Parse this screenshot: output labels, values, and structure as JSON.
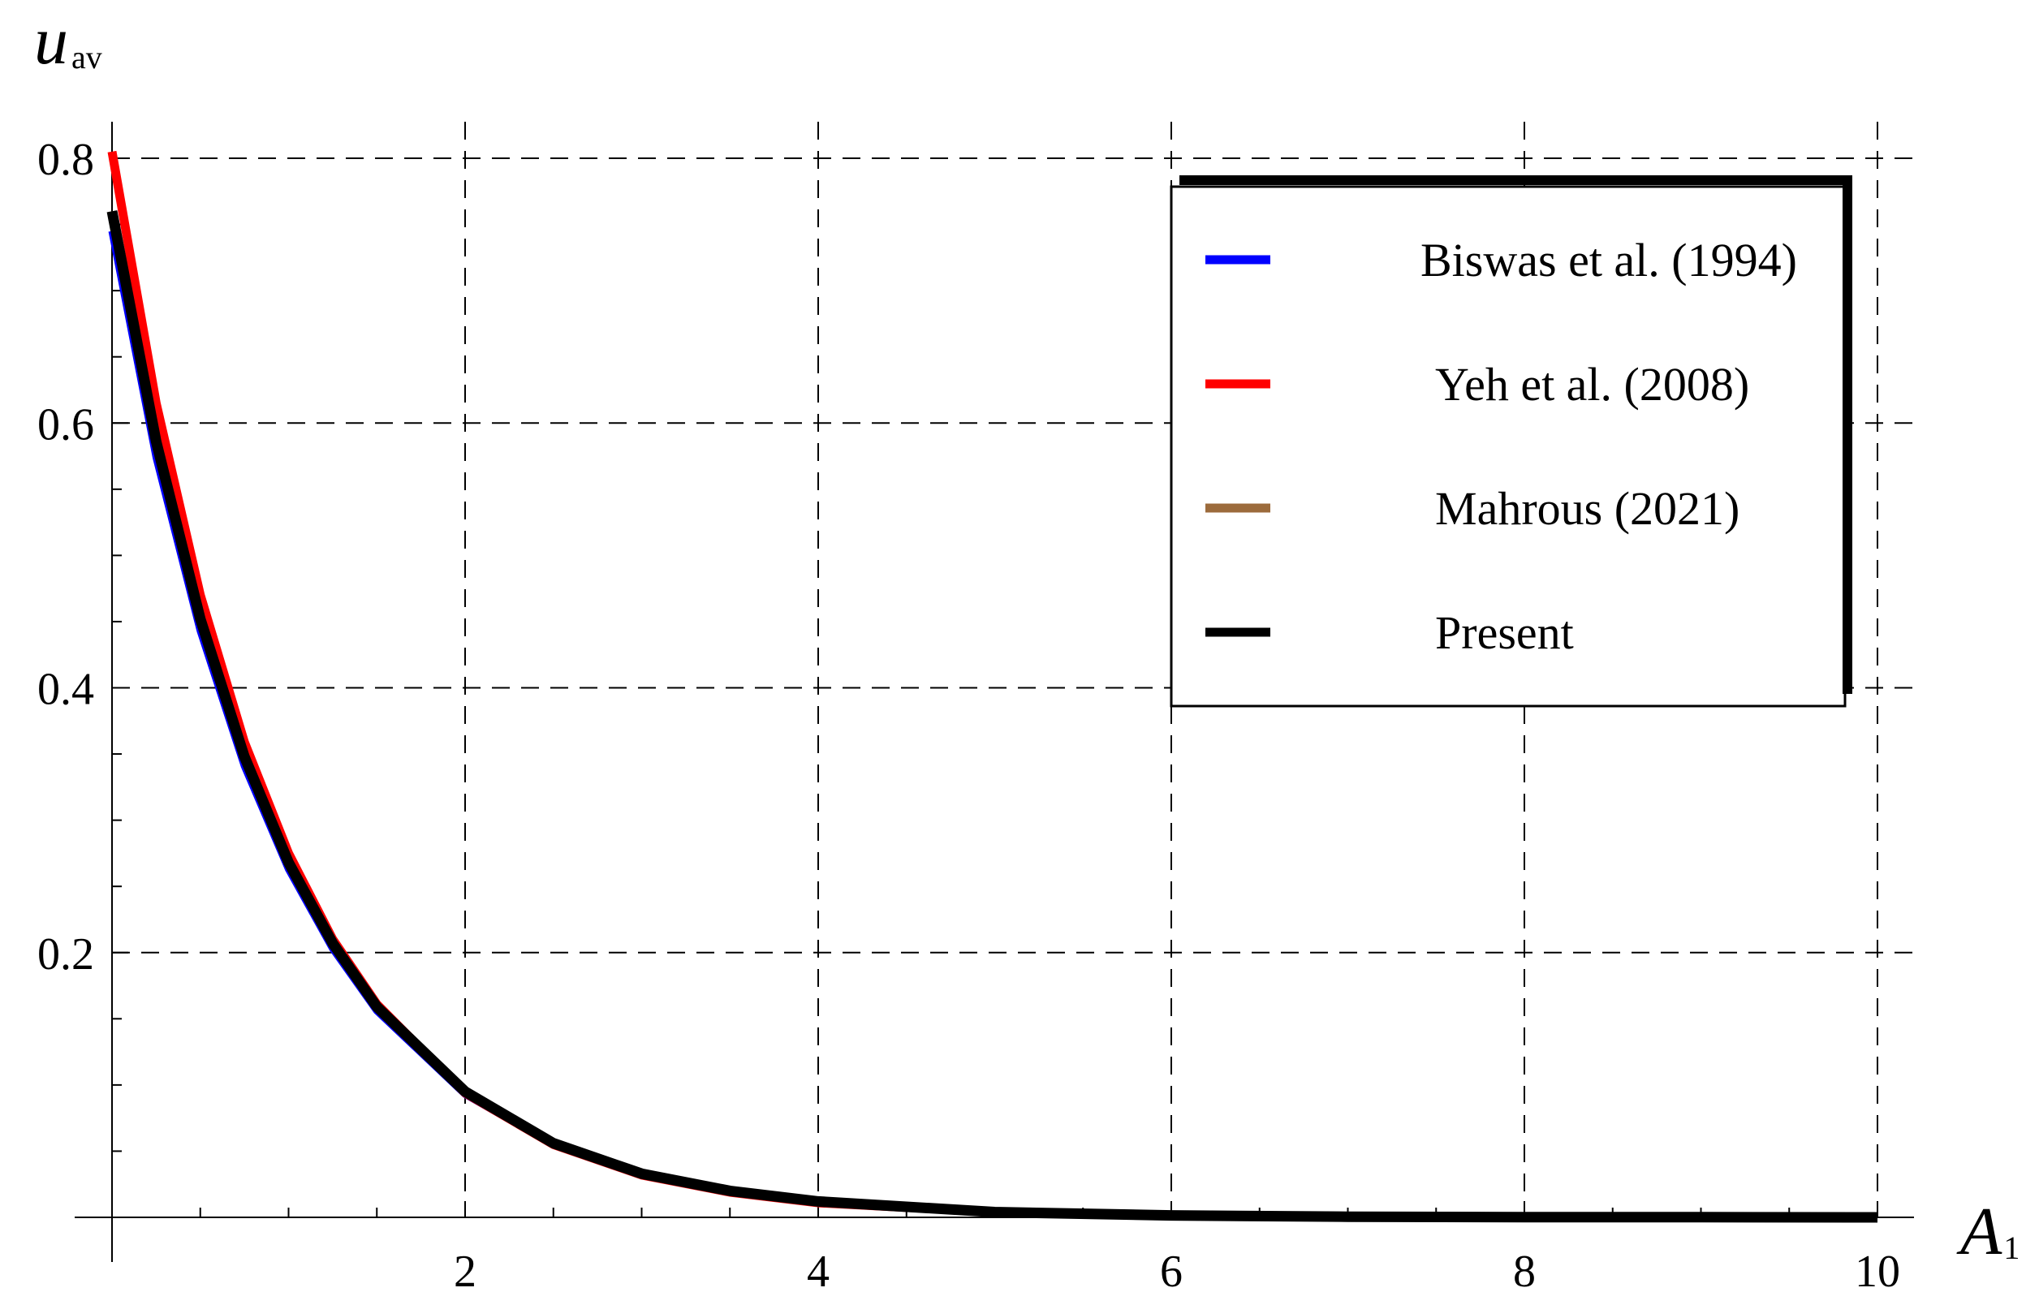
{
  "chart_data": {
    "type": "line",
    "title": "",
    "xlabel": "A",
    "xlabel_sub": "1",
    "ylabel": "u",
    "ylabel_sub": "av",
    "xlim": [
      0,
      10.2
    ],
    "ylim": [
      -0.01,
      0.84
    ],
    "xticks": [
      2,
      4,
      6,
      8,
      10
    ],
    "yticks": [
      0.2,
      0.4,
      0.6,
      0.8
    ],
    "xtick_labels": [
      "2",
      "4",
      "6",
      "8",
      "10"
    ],
    "ytick_labels": [
      "0.2",
      "0.4",
      "0.6",
      "0.8"
    ],
    "grid": true,
    "legend_position": "top-right",
    "x": [
      0,
      0.25,
      0.5,
      0.75,
      1,
      1.25,
      1.5,
      2,
      2.5,
      3,
      3.5,
      4,
      5,
      6,
      7,
      8,
      9,
      10
    ],
    "series": [
      {
        "name": "Biswas et al. (1994)",
        "color": "#0000ff",
        "values": [
          0.745,
          0.574,
          0.443,
          0.341,
          0.263,
          0.203,
          0.156,
          0.093,
          0.055,
          0.033,
          0.019,
          0.012,
          0.004,
          0.0015,
          0.0005,
          0.0002,
          0.0001,
          0.0
        ]
      },
      {
        "name": "Yeh et al. (2008)",
        "color": "#ff0000",
        "values": [
          0.805,
          0.615,
          0.47,
          0.359,
          0.275,
          0.21,
          0.161,
          0.094,
          0.055,
          0.032,
          0.019,
          0.011,
          0.004,
          0.0013,
          0.0004,
          0.0002,
          0.0001,
          0.0
        ]
      },
      {
        "name": "Mahrous (2021)",
        "color": "#9c6b3c",
        "values": [
          0.76,
          0.586,
          0.452,
          0.348,
          0.268,
          0.207,
          0.159,
          0.095,
          0.056,
          0.033,
          0.02,
          0.012,
          0.004,
          0.0015,
          0.0005,
          0.0002,
          0.0001,
          0.0
        ]
      },
      {
        "name": "Present",
        "color": "#000000",
        "values": [
          0.76,
          0.586,
          0.452,
          0.348,
          0.268,
          0.207,
          0.159,
          0.095,
          0.056,
          0.033,
          0.02,
          0.012,
          0.004,
          0.0015,
          0.0005,
          0.0002,
          0.0001,
          0.0
        ]
      }
    ]
  }
}
